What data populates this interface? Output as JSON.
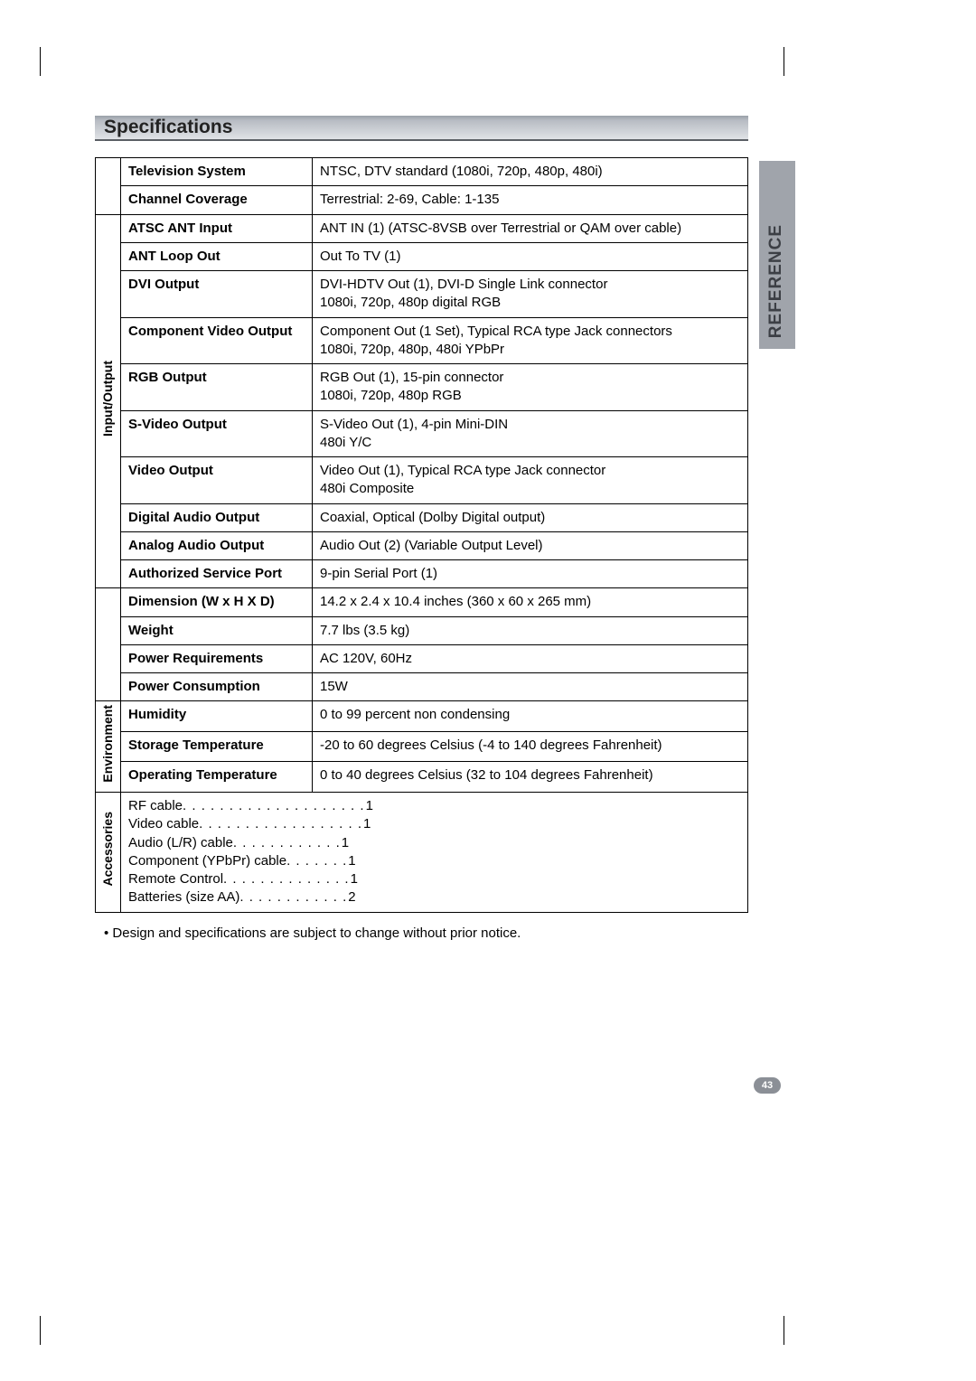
{
  "title": "Specifications",
  "side_tab": "REFERENCE",
  "page_number": "43",
  "footnote": "• Design and specifications are subject to change without prior notice.",
  "rows": {
    "tv_system_label": "Television System",
    "tv_system_value": "NTSC, DTV standard (1080i, 720p, 480p, 480i)",
    "channel_label": "Channel Coverage",
    "channel_value": "Terrestrial: 2-69, Cable: 1-135",
    "io_category": "Input/Output",
    "atsc_label": "ATSC ANT Input",
    "atsc_value": "ANT IN (1) (ATSC-8VSB over Terrestrial or QAM over cable)",
    "antloop_label": "ANT Loop Out",
    "antloop_value": "Out To TV (1)",
    "dvi_label": "DVI Output",
    "dvi_value": "DVI-HDTV Out (1), DVI-D Single Link connector\n1080i, 720p, 480p digital RGB",
    "comp_label": "Component Video Output",
    "comp_value": "Component Out (1 Set), Typical RCA type Jack connectors\n1080i, 720p, 480p, 480i YPbPr",
    "rgb_label": "RGB Output",
    "rgb_value": "RGB Out (1), 15-pin connector\n1080i, 720p, 480p RGB",
    "svideo_label": "S-Video Output",
    "svideo_value": "S-Video Out (1), 4-pin Mini-DIN\n480i Y/C",
    "video_label": "Video Output",
    "video_value": "Video Out (1), Typical RCA type Jack connector\n480i Composite",
    "daudio_label": "Digital Audio Output",
    "daudio_value": "Coaxial, Optical (Dolby Digital output)",
    "aaudio_label": "Analog Audio Output",
    "aaudio_value": "Audio Out (2) (Variable Output Level)",
    "asport_label": "Authorized Service Port",
    "asport_value": "9-pin Serial Port (1)",
    "dim_label": "Dimension (W x H X D)",
    "dim_value": "14.2 x 2.4 x 10.4 inches (360 x 60 x 265 mm)",
    "weight_label": "Weight",
    "weight_value": "7.7 lbs (3.5 kg)",
    "power_req_label": "Power Requirements",
    "power_req_value": "AC 120V, 60Hz",
    "power_cons_label": "Power Consumption",
    "power_cons_value": "15W",
    "env_category": "Environment",
    "humidity_label": "Humidity",
    "humidity_value": "0 to 99 percent non condensing",
    "storage_label": "Storage Temperature",
    "storage_value": "-20 to 60 degrees Celsius (-4 to 140 degrees Fahrenheit)",
    "operating_label": "Operating Temperature",
    "operating_value": "0 to 40 degrees Celsius (32 to 104 degrees Fahrenheit)",
    "acc_category": "Accessories"
  },
  "accessories": [
    {
      "name": "RF cable",
      "dots": " . . . . . . . . . . . . . . . . . . . .",
      "qty": "1"
    },
    {
      "name": "Video cable",
      "dots": " . . . . . . . . . . . . . . . . . .",
      "qty": "1"
    },
    {
      "name": "Audio (L/R) cable ",
      "dots": " . . . . . . . . . . . .",
      "qty": "1"
    },
    {
      "name": "Component (YPbPr) cable ",
      "dots": " . . . . . . .",
      "qty": "1"
    },
    {
      "name": "Remote Control ",
      "dots": " . . . . . . . . . . . . . .",
      "qty": "1"
    },
    {
      "name": "Batteries (size AA) ",
      "dots": " . . . . . . . . . . . .",
      "qty": "2"
    }
  ]
}
